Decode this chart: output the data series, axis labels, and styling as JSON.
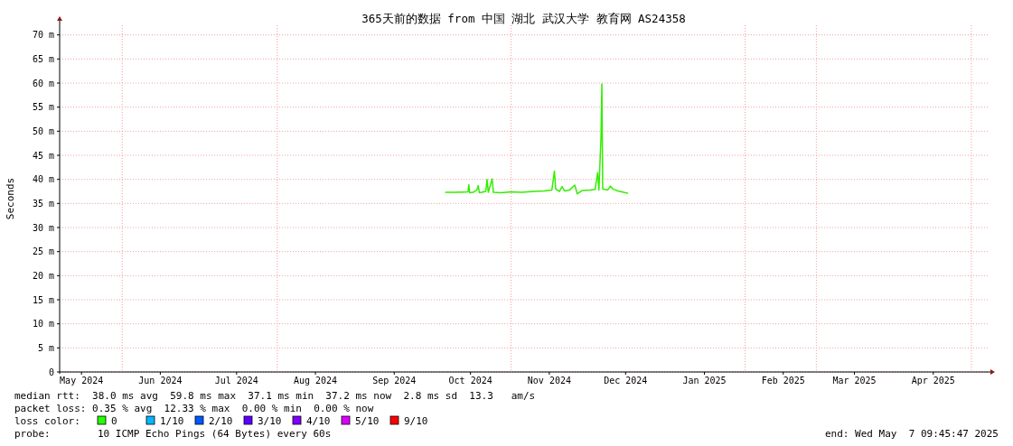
{
  "chart_data": {
    "type": "line",
    "title": "365天前的数据 from 中国 湖北 武汉大学 教育网 AS24358",
    "ylabel": "Seconds",
    "xlim": [
      "2024-05-07T09:45",
      "2025-05-07T09:45"
    ],
    "xticks": [
      {
        "value": "2024-05-16",
        "label": "May 2024"
      },
      {
        "value": "2024-06-16",
        "label": "Jun 2024"
      },
      {
        "value": "2024-07-16",
        "label": "Jul 2024"
      },
      {
        "value": "2024-08-16",
        "label": "Aug 2024"
      },
      {
        "value": "2024-09-16",
        "label": "Sep 2024"
      },
      {
        "value": "2024-10-16",
        "label": "Oct 2024"
      },
      {
        "value": "2024-11-16",
        "label": "Nov 2024"
      },
      {
        "value": "2024-12-16",
        "label": "Dec 2024"
      },
      {
        "value": "2025-01-16",
        "label": "Jan 2025"
      },
      {
        "value": "2025-02-16",
        "label": "Feb 2025"
      },
      {
        "value": "2025-03-16",
        "label": "Mar 2025"
      },
      {
        "value": "2025-04-16",
        "label": "Apr 2025"
      }
    ],
    "ylim": [
      0,
      72
    ],
    "yticks": [
      0,
      {
        "value": 5,
        "label": "5 m"
      },
      {
        "value": 10,
        "label": "10 m"
      },
      {
        "value": 15,
        "label": "15 m"
      },
      {
        "value": 20,
        "label": "20 m"
      },
      {
        "value": 25,
        "label": "25 m"
      },
      {
        "value": 30,
        "label": "30 m"
      },
      {
        "value": 35,
        "label": "35 m"
      },
      {
        "value": 40,
        "label": "40 m"
      },
      {
        "value": 45,
        "label": "45 m"
      },
      {
        "value": 50,
        "label": "50 m"
      },
      {
        "value": 55,
        "label": "55 m"
      },
      {
        "value": 60,
        "label": "60 m"
      },
      {
        "value": 65,
        "label": "65 m"
      },
      {
        "value": 70,
        "label": "70 m"
      }
    ],
    "grid": "y",
    "ref_lines": [
      {
        "axis": "x",
        "value": "2024-06-01",
        "color": "#ff9999",
        "line_style": "dotted"
      },
      {
        "axis": "x",
        "value": "2024-08-01",
        "color": "#ff9999",
        "line_style": "dotted"
      },
      {
        "axis": "x",
        "value": "2024-11-01",
        "color": "#ff9999",
        "line_style": "dotted"
      },
      {
        "axis": "x",
        "value": "2025-02-01",
        "color": "#ff9999",
        "line_style": "dotted"
      },
      {
        "axis": "x",
        "value": "2025-03-01",
        "color": "#ff9999",
        "line_style": "dotted"
      },
      {
        "axis": "x",
        "value": "2025-05-01",
        "color": "#ff9999",
        "line_style": "dotted"
      }
    ],
    "x": [
      "2024-10-06",
      "2024-10-10",
      "2024-10-15",
      "2024-10-15T08:00",
      "2024-10-15T16:00",
      "2024-10-17",
      "2024-10-18T12:00",
      "2024-10-19",
      "2024-10-19T12:00",
      "2024-10-22",
      "2024-10-22T12:00",
      "2024-10-23",
      "2024-10-24T12:00",
      "2024-10-25",
      "2024-10-28",
      "2024-11-01",
      "2024-11-05",
      "2024-11-10",
      "2024-11-14",
      "2024-11-17",
      "2024-11-18",
      "2024-11-18T12:00",
      "2024-11-20",
      "2024-11-21",
      "2024-11-22",
      "2024-11-24",
      "2024-11-26",
      "2024-11-27",
      "2024-11-29",
      "2024-12-02",
      "2024-12-04",
      "2024-12-05",
      "2024-12-05T12:00",
      "2024-12-06T08:00",
      "2024-12-06T16:00",
      "2024-12-07",
      "2024-12-09",
      "2024-12-10",
      "2024-12-11",
      "2024-12-13",
      "2024-12-16",
      "2024-12-17"
    ],
    "series": [
      {
        "color": "#33ee00",
        "values": [
          37.3,
          37.3,
          37.4,
          38.9,
          37.2,
          37.3,
          37.8,
          38.7,
          37.2,
          37.5,
          40.0,
          37.3,
          40.1,
          37.3,
          37.2,
          37.4,
          37.3,
          37.5,
          37.6,
          37.8,
          41.7,
          38.0,
          37.5,
          38.5,
          37.6,
          37.8,
          38.8,
          37.0,
          37.7,
          37.8,
          37.9,
          41.4,
          37.8,
          49.0,
          59.8,
          38.0,
          37.8,
          38.6,
          38.0,
          37.6,
          37.2,
          37.1
        ]
      }
    ],
    "annotations": [
      "median rtt:  38.0 ms avg  59.8 ms max  37.1 ms min  37.2 ms now  2.8 ms sd  13.3   am/s",
      "packet loss: 0.35 % avg  12.33 % max  0.00 % min  0.00 % now",
      "loss color:",
      "0",
      "1/10",
      "2/10",
      "3/10",
      "4/10",
      "5/10",
      "9/10",
      "probe:",
      "10 ICMP Echo Pings (64 Bytes) every 60s",
      "end: Wed May  7 09:45:47 2025"
    ]
  }
}
